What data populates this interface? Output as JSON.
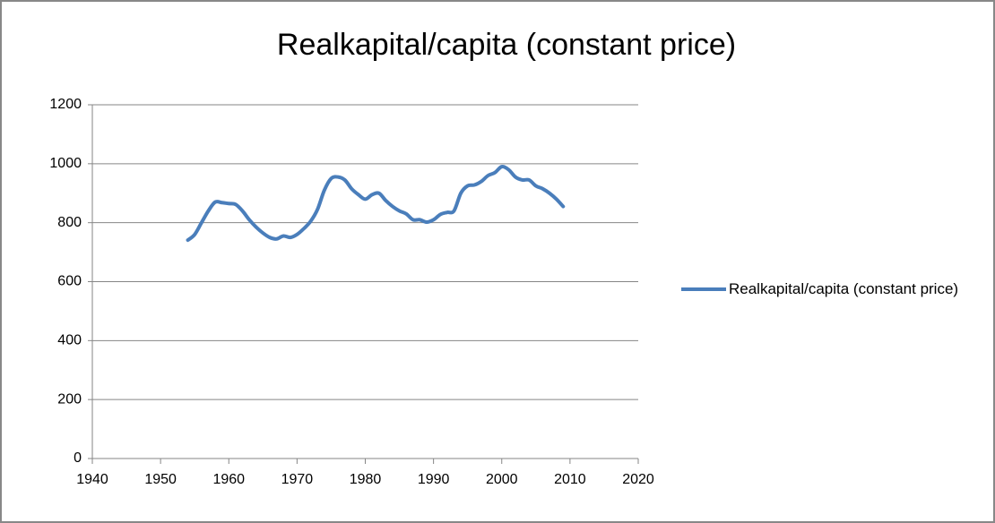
{
  "chart_data": {
    "type": "line",
    "title": "Realkapital/capita (constant price)",
    "x": [
      1954,
      1955,
      1956,
      1957,
      1958,
      1959,
      1960,
      1961,
      1962,
      1963,
      1964,
      1965,
      1966,
      1967,
      1968,
      1969,
      1970,
      1971,
      1972,
      1973,
      1974,
      1975,
      1976,
      1977,
      1978,
      1979,
      1980,
      1981,
      1982,
      1983,
      1984,
      1985,
      1986,
      1987,
      1988,
      1989,
      1990,
      1991,
      1992,
      1993,
      1994,
      1995,
      1996,
      1997,
      1998,
      1999,
      2000,
      2001,
      2002,
      2003,
      2004,
      2005,
      2006,
      2007,
      2008,
      2009
    ],
    "series": [
      {
        "name": "Realkapital/capita (constant price)",
        "color": "#4a7ebb",
        "values": [
          741,
          760,
          800,
          840,
          870,
          868,
          865,
          862,
          840,
          810,
          785,
          765,
          750,
          745,
          755,
          750,
          760,
          780,
          805,
          845,
          910,
          950,
          955,
          945,
          915,
          895,
          880,
          895,
          900,
          875,
          855,
          840,
          830,
          810,
          810,
          802,
          810,
          828,
          835,
          840,
          900,
          925,
          928,
          940,
          960,
          970,
          990,
          980,
          955,
          945,
          945,
          925,
          915,
          900,
          880,
          855
        ]
      }
    ],
    "xlim": [
      1940,
      2020
    ],
    "xticks": [
      1940,
      1950,
      1960,
      1970,
      1980,
      1990,
      2000,
      2010,
      2020
    ],
    "ylim": [
      0,
      1200
    ],
    "yticks": [
      0,
      200,
      400,
      600,
      800,
      1000,
      1200
    ],
    "grid": true,
    "legend": "right"
  }
}
